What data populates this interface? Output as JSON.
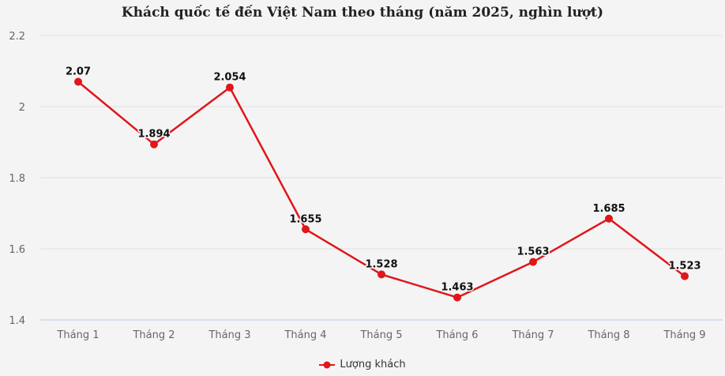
{
  "title": "Khách quốc tế đến Việt Nam theo tháng (năm 2025, nghìn lượt)",
  "legend": {
    "label": "Lượng khách",
    "icon": "line-marker-icon"
  },
  "colors": {
    "series": "#e0161b",
    "background": "#f4f4f4",
    "grid": "#e6e6e6",
    "axis": "#ccd6eb"
  },
  "chart_data": {
    "type": "line",
    "title": "Khách quốc tế đến Việt Nam theo tháng (năm 2025, nghìn lượt)",
    "xlabel": "",
    "ylabel": "",
    "categories": [
      "Tháng 1",
      "Tháng 2",
      "Tháng 3",
      "Tháng 4",
      "Tháng 5",
      "Tháng 6",
      "Tháng 7",
      "Tháng 8",
      "Tháng 9"
    ],
    "series": [
      {
        "name": "Lượng khách",
        "values": [
          2.07,
          1.894,
          2.054,
          1.655,
          1.528,
          1.463,
          1.563,
          1.685,
          1.523
        ]
      }
    ],
    "value_labels": [
      "2.07",
      "1.894",
      "2.054",
      "1.655",
      "1.528",
      "1.463",
      "1.563",
      "1.685",
      "1.523"
    ],
    "ylim": [
      1.4,
      2.2
    ],
    "yticks": [
      1.4,
      1.6,
      1.8,
      2.0,
      2.2
    ],
    "ytick_labels": [
      "1.4",
      "1.6",
      "1.8",
      "2",
      "2.2"
    ],
    "grid": true,
    "legend_position": "bottom-center"
  }
}
